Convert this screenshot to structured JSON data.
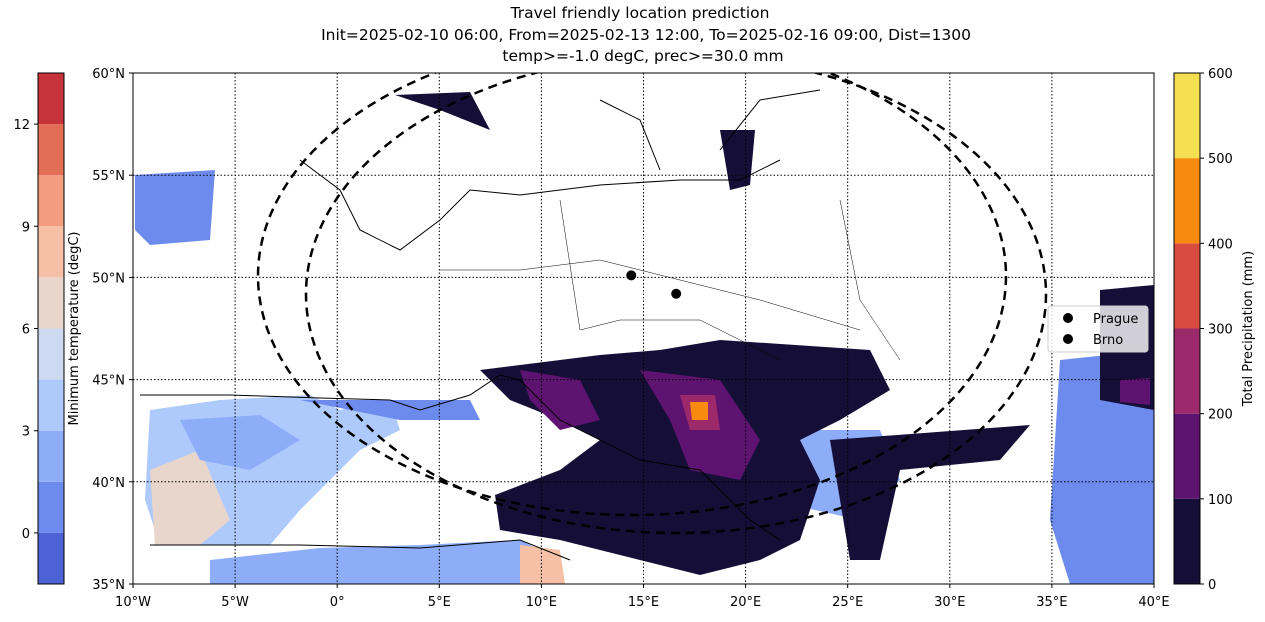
{
  "chart_data": {
    "type": "map",
    "title": [
      "Travel friendly location prediction",
      "Init=2025-02-10 06:00, From=2025-02-13 12:00, To=2025-02-16 09:00, Dist=1300",
      "temp>=-1.0 degC, prec>=30.0 mm"
    ],
    "xlim": [
      -10,
      40
    ],
    "ylim": [
      35,
      60
    ],
    "xticks": [
      {
        "value": -10,
        "label": "10°W"
      },
      {
        "value": -5,
        "label": "5°W"
      },
      {
        "value": 0,
        "label": "0°"
      },
      {
        "value": 5,
        "label": "5°E"
      },
      {
        "value": 10,
        "label": "10°E"
      },
      {
        "value": 15,
        "label": "15°E"
      },
      {
        "value": 20,
        "label": "20°E"
      },
      {
        "value": 25,
        "label": "25°E"
      },
      {
        "value": 30,
        "label": "30°E"
      },
      {
        "value": 35,
        "label": "35°E"
      },
      {
        "value": 40,
        "label": "40°E"
      }
    ],
    "yticks": [
      {
        "value": 35,
        "label": "35°N"
      },
      {
        "value": 40,
        "label": "40°N"
      },
      {
        "value": 45,
        "label": "45°N"
      },
      {
        "value": 50,
        "label": "50°N"
      },
      {
        "value": 55,
        "label": "55°N"
      },
      {
        "value": 60,
        "label": "60°N"
      }
    ],
    "grid": true,
    "cities": [
      {
        "name": "Prague",
        "lon": 14.4,
        "lat": 50.1,
        "color": "#000000"
      },
      {
        "name": "Brno",
        "lon": 16.6,
        "lat": 49.2,
        "color": "#000000"
      }
    ],
    "legend": "right",
    "colorbars": [
      {
        "label": "Minimum temperature (degC)",
        "levels": [
          -1.5,
          0,
          1.5,
          3,
          4.5,
          6,
          7.5,
          9,
          10.5,
          12,
          13.5
        ],
        "colors": [
          "#4c62d5",
          "#6d8bed",
          "#8dadf9",
          "#aec9fc",
          "#ccd9ee",
          "#e8d6cc",
          "#f5c0a6",
          "#f39c7e",
          "#e26e56",
          "#c6333a"
        ],
        "ylim": [
          -1.5,
          13.5
        ],
        "yticks": [
          0,
          3,
          6,
          9,
          12
        ]
      },
      {
        "label": "Total Precipitation (mm)",
        "levels": [
          0,
          100,
          200,
          300,
          400,
          500,
          600
        ],
        "colors": [
          "#150e37",
          "#5e1370",
          "#9c2a6b",
          "#d74c3f",
          "#f88b0f",
          "#f4df53"
        ],
        "ylim": [
          0,
          600
        ],
        "yticks": [
          0,
          100,
          200,
          300,
          400,
          500,
          600
        ]
      }
    ]
  }
}
